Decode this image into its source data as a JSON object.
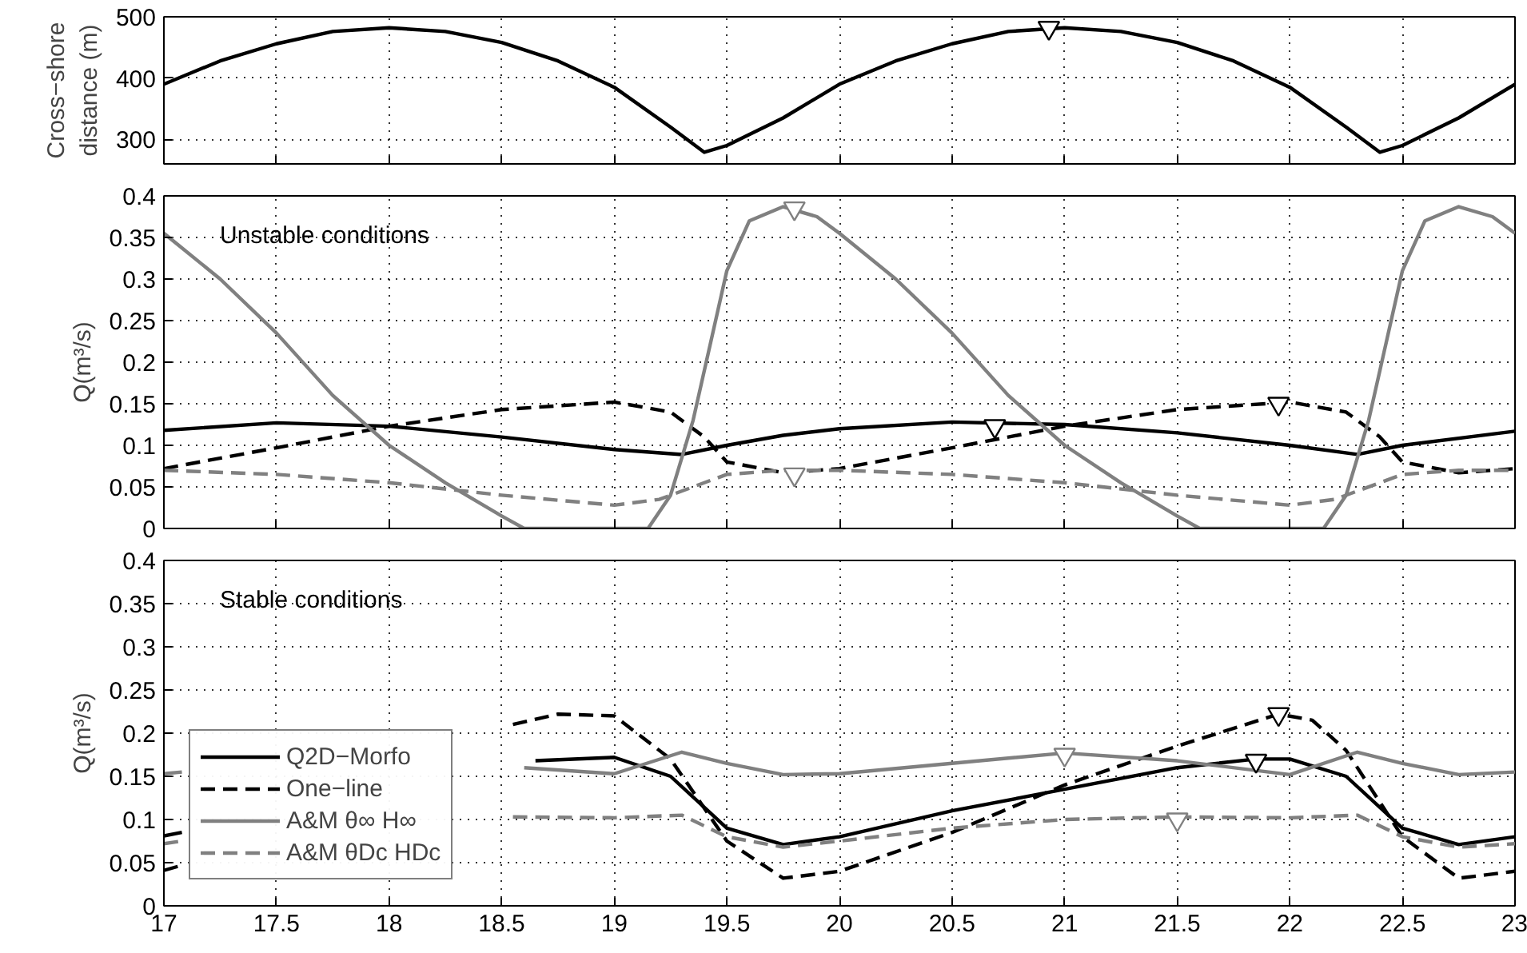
{
  "chart_data": [
    {
      "type": "line",
      "ylabel": "Cross−shore\ndistance (m)",
      "xlim": [
        17,
        23
      ],
      "xticks": [
        17,
        17.5,
        18,
        18.5,
        19,
        19.5,
        20,
        20.5,
        21,
        21.5,
        22,
        22.5,
        23
      ],
      "ylim": [
        260,
        500
      ],
      "yticks": [
        300,
        400,
        500
      ],
      "grid": true,
      "tick_labels": "y",
      "series": [
        {
          "color": "#000000",
          "line_style": "solid",
          "x": [
            17,
            17.25,
            17.5,
            17.75,
            18,
            18.25,
            18.5,
            18.75,
            19,
            19.25,
            19.4,
            19.5,
            19.75,
            20,
            20.25,
            20.5,
            20.75,
            21,
            21.25,
            21.5,
            21.75,
            22,
            22.25,
            22.4,
            22.5,
            22.75,
            23
          ],
          "values": [
            390,
            428,
            456,
            476,
            482,
            476,
            458,
            428,
            385,
            320,
            279,
            290,
            335,
            390,
            428,
            456,
            476,
            482,
            476,
            458,
            428,
            385,
            320,
            279,
            290,
            335,
            390
          ]
        },
        {
          "type": "scatter",
          "marker": "triangle",
          "color": "#000000",
          "x": [
            20.93
          ],
          "values": [
            482
          ]
        }
      ]
    },
    {
      "type": "line",
      "ylabel": "Q(m³/s)",
      "annotations": [
        "Unstable conditions"
      ],
      "xlim": [
        17,
        23
      ],
      "xticks": [
        17,
        17.5,
        18,
        18.5,
        19,
        19.5,
        20,
        20.5,
        21,
        21.5,
        22,
        22.5,
        23
      ],
      "ylim": [
        0,
        0.4
      ],
      "yticks": [
        0,
        0.05,
        0.1,
        0.15,
        0.2,
        0.25,
        0.3,
        0.35,
        0.4
      ],
      "grid": true,
      "tick_labels": "y",
      "series": [
        {
          "color": "#000000",
          "line_style": "solid",
          "x": [
            17,
            17.5,
            18,
            18.5,
            19,
            19.3,
            19.5,
            19.75,
            20,
            20.5,
            21,
            21.5,
            22,
            22.3,
            22.5,
            23
          ],
          "values": [
            0.118,
            0.127,
            0.123,
            0.11,
            0.095,
            0.089,
            0.1,
            0.112,
            0.12,
            0.128,
            0.125,
            0.115,
            0.1,
            0.089,
            0.1,
            0.117
          ]
        },
        {
          "color": "#000000",
          "line_style": "dashed",
          "x": [
            17,
            17.5,
            18,
            18.5,
            19,
            19.25,
            19.4,
            19.5,
            19.75,
            20,
            20.5,
            21,
            21.5,
            22,
            22.25,
            22.4,
            22.5,
            22.75,
            23
          ],
          "values": [
            0.072,
            0.097,
            0.123,
            0.143,
            0.152,
            0.14,
            0.11,
            0.08,
            0.067,
            0.072,
            0.097,
            0.123,
            0.143,
            0.152,
            0.14,
            0.11,
            0.08,
            0.067,
            0.072
          ]
        },
        {
          "color": "#808080",
          "line_style": "solid",
          "x": [
            17,
            17.25,
            17.5,
            17.75,
            18,
            18.25,
            18.5,
            18.6,
            19.15,
            19.25,
            19.35,
            19.5,
            19.6,
            19.75,
            19.9,
            20,
            20.25,
            20.5,
            20.75,
            21,
            21.25,
            21.5,
            21.6,
            22.15,
            22.25,
            22.35,
            22.5,
            22.6,
            22.75,
            22.9,
            23
          ],
          "values": [
            0.355,
            0.3,
            0.235,
            0.16,
            0.1,
            0.055,
            0.015,
            0,
            0,
            0.04,
            0.13,
            0.31,
            0.37,
            0.387,
            0.375,
            0.355,
            0.3,
            0.235,
            0.16,
            0.1,
            0.055,
            0.015,
            0,
            0,
            0.04,
            0.13,
            0.31,
            0.37,
            0.387,
            0.375,
            0.355
          ]
        },
        {
          "color": "#808080",
          "line_style": "dashed",
          "x": [
            17,
            17.5,
            18,
            18.5,
            19,
            19.2,
            19.5,
            19.75,
            20,
            20.5,
            21,
            21.5,
            22,
            22.2,
            22.5,
            22.75,
            23
          ],
          "values": [
            0.07,
            0.065,
            0.055,
            0.04,
            0.028,
            0.035,
            0.065,
            0.07,
            0.07,
            0.065,
            0.055,
            0.04,
            0.028,
            0.035,
            0.065,
            0.07,
            0.07
          ]
        },
        {
          "type": "scatter",
          "marker": "triangle",
          "color": "#000000",
          "x": [
            20.69,
            21.95
          ],
          "values": [
            0.123,
            0.15
          ]
        },
        {
          "type": "scatter",
          "marker": "triangle",
          "color": "#808080",
          "x": [
            19.8,
            19.8
          ],
          "values": [
            0.385,
            0.065
          ]
        }
      ]
    },
    {
      "type": "line",
      "ylabel": "Q(m³/s)",
      "annotations": [
        "Stable conditions"
      ],
      "xlim": [
        17,
        23
      ],
      "xticks": [
        17,
        17.5,
        18,
        18.5,
        19,
        19.5,
        20,
        20.5,
        21,
        21.5,
        22,
        22.5,
        23
      ],
      "ylim": [
        0,
        0.4
      ],
      "yticks": [
        0,
        0.05,
        0.1,
        0.15,
        0.2,
        0.25,
        0.3,
        0.35,
        0.4
      ],
      "grid": true,
      "legend": "bottom left",
      "series": [
        {
          "name": "Q2D−Morfo",
          "color": "#000000",
          "line_style": "solid",
          "x": [
            17,
            17.08,
            18,
            18.65,
            19,
            19.25,
            19.5,
            19.75,
            20,
            20.5,
            21,
            21.5,
            21.85,
            22,
            22.25,
            22.5,
            22.75,
            23
          ],
          "values": [
            0.081,
            0.085,
            null,
            0.168,
            0.172,
            0.15,
            0.09,
            0.071,
            0.08,
            0.11,
            0.135,
            0.16,
            0.17,
            0.17,
            0.15,
            0.09,
            0.071,
            0.08
          ]
        },
        {
          "name": "One−line",
          "color": "#000000",
          "line_style": "dashed",
          "x": [
            17,
            17.08,
            18,
            18.55,
            18.75,
            19,
            19.25,
            19.5,
            19.75,
            20,
            20.5,
            21,
            21.5,
            21.95,
            22.1,
            22.25,
            22.5,
            22.75,
            23
          ],
          "values": [
            0.041,
            0.047,
            null,
            0.21,
            0.222,
            0.22,
            0.17,
            0.075,
            0.032,
            0.04,
            0.085,
            0.14,
            0.185,
            0.222,
            0.215,
            0.18,
            0.08,
            0.032,
            0.04
          ]
        },
        {
          "name": "A&M θ∞ H∞",
          "color": "#808080",
          "line_style": "solid",
          "x": [
            17,
            17.08,
            18,
            18.6,
            19,
            19.3,
            19.5,
            19.75,
            20,
            20.5,
            21,
            21.5,
            22,
            22.3,
            22.5,
            22.75,
            23
          ],
          "values": [
            0.153,
            0.155,
            null,
            0.16,
            0.153,
            0.178,
            0.165,
            0.152,
            0.153,
            0.165,
            0.177,
            0.168,
            0.152,
            0.178,
            0.165,
            0.152,
            0.155
          ]
        },
        {
          "name": "A&M θDc HDc",
          "color": "#808080",
          "line_style": "dashed",
          "x": [
            17,
            17.08,
            18,
            18.55,
            19,
            19.3,
            19.5,
            19.75,
            20,
            20.5,
            21,
            21.5,
            22,
            22.3,
            22.5,
            22.75,
            23
          ],
          "values": [
            0.072,
            0.075,
            null,
            0.103,
            0.102,
            0.105,
            0.08,
            0.068,
            0.075,
            0.09,
            0.1,
            0.103,
            0.102,
            0.105,
            0.08,
            0.068,
            0.072
          ]
        },
        {
          "type": "scatter",
          "marker": "triangle",
          "color": "#000000",
          "x": [
            21.85,
            21.95
          ],
          "values": [
            0.168,
            0.222
          ]
        },
        {
          "type": "scatter",
          "marker": "triangle",
          "color": "#808080",
          "x": [
            21,
            21.5
          ],
          "values": [
            0.175,
            0.1
          ]
        }
      ]
    }
  ]
}
